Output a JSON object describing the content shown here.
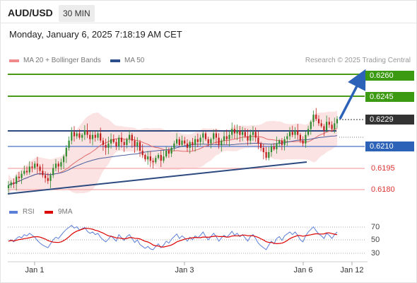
{
  "header": {
    "symbol": "AUD/USD",
    "timeframe": "30 MIN",
    "datetime": "Monday, January 6, 2025 7:18:19 AM CET"
  },
  "legend": {
    "bb": "MA 20 + Bollinger Bands",
    "ma50": "MA 50",
    "credit": "Research © 2025 Trading Central",
    "bb_color": "#f08a8a",
    "ma50_color": "#2c4f8c"
  },
  "rsi_legend": {
    "rsi": "RSI",
    "ma9": "9MA",
    "rsi_color": "#5b7fd6",
    "ma9_color": "#dd0000"
  },
  "levels": [
    {
      "value": "0.6260",
      "style": "green"
    },
    {
      "value": "0.6245",
      "style": "green"
    },
    {
      "value": "0.6229",
      "style": "dark"
    },
    {
      "value": "0.6210",
      "style": "blue"
    },
    {
      "value": "0.6195",
      "style": "red"
    },
    {
      "value": "0.6180",
      "style": "red"
    }
  ],
  "rsi_levels": [
    "70",
    "50",
    "30"
  ],
  "x_labels": [
    "Jan 1",
    "Jan 3",
    "Jan 6",
    "Jan 12"
  ],
  "chart_data": {
    "type": "candlestick",
    "price_ylim": [
      0.6178,
      0.6262
    ],
    "last_price": 0.6229,
    "key_levels": {
      "target_2": 0.626,
      "target_1": 0.6245,
      "pivot": 0.621,
      "support_1": 0.6195,
      "support_2": 0.618
    },
    "close": [
      0.6183,
      0.6185,
      0.6184,
      0.6189,
      0.6188,
      0.6191,
      0.6193,
      0.6192,
      0.6196,
      0.6195,
      0.6198,
      0.6196,
      0.6193,
      0.619,
      0.6188,
      0.6186,
      0.619,
      0.6195,
      0.6198,
      0.6196,
      0.6199,
      0.6203,
      0.6209,
      0.6214,
      0.622,
      0.6217,
      0.6219,
      0.6216,
      0.6218,
      0.6221,
      0.6218,
      0.6215,
      0.6218,
      0.6216,
      0.6219,
      0.6214,
      0.6211,
      0.6209,
      0.6212,
      0.6215,
      0.6213,
      0.621,
      0.6216,
      0.6213,
      0.6211,
      0.6215,
      0.6218,
      0.6214,
      0.621,
      0.6213,
      0.6207,
      0.6204,
      0.6201,
      0.6203,
      0.62,
      0.6199,
      0.6202,
      0.6204,
      0.62,
      0.6203,
      0.6207,
      0.6205,
      0.6209,
      0.6212,
      0.6215,
      0.6211,
      0.6214,
      0.6212,
      0.6209,
      0.6213,
      0.6211,
      0.6215,
      0.6213,
      0.6216,
      0.6219,
      0.6215,
      0.6212,
      0.6215,
      0.6219,
      0.6216,
      0.6211,
      0.6214,
      0.6217,
      0.6215,
      0.6218,
      0.6222,
      0.6219,
      0.6221,
      0.6218,
      0.622,
      0.6217,
      0.6214,
      0.6218,
      0.622,
      0.6216,
      0.6212,
      0.6209,
      0.6206,
      0.6202,
      0.6206,
      0.621,
      0.6208,
      0.6212,
      0.6214,
      0.6211,
      0.6215,
      0.6217,
      0.622,
      0.6218,
      0.6221,
      0.6218,
      0.6214,
      0.6212,
      0.6218,
      0.6222,
      0.6227,
      0.6232,
      0.6229,
      0.6226,
      0.6224,
      0.6221,
      0.6227,
      0.6225,
      0.6222,
      0.6226,
      0.6229
    ],
    "rsi": [
      48,
      50,
      47,
      52,
      55,
      53,
      58,
      56,
      60,
      57,
      54,
      49,
      45,
      42,
      40,
      38,
      44,
      50,
      54,
      52,
      57,
      62,
      66,
      69,
      72,
      68,
      70,
      65,
      67,
      69,
      63,
      60,
      62,
      58,
      60,
      54,
      50,
      47,
      51,
      56,
      52,
      48,
      58,
      53,
      49,
      55,
      58,
      52,
      46,
      50,
      43,
      40,
      37,
      40,
      36,
      35,
      40,
      44,
      38,
      42,
      48,
      45,
      51,
      55,
      59,
      52,
      56,
      53,
      48,
      54,
      50,
      56,
      53,
      57,
      62,
      55,
      50,
      55,
      60,
      55,
      48,
      53,
      57,
      54,
      58,
      63,
      57,
      60,
      55,
      58,
      53,
      48,
      55,
      58,
      52,
      45,
      41,
      38,
      35,
      42,
      48,
      44,
      52,
      55,
      49,
      56,
      59,
      62,
      58,
      62,
      57,
      50,
      47,
      56,
      62,
      66,
      70,
      64,
      59,
      56,
      52,
      60,
      57,
      52,
      58,
      62
    ],
    "rsi_ylim": [
      20,
      80
    ]
  }
}
